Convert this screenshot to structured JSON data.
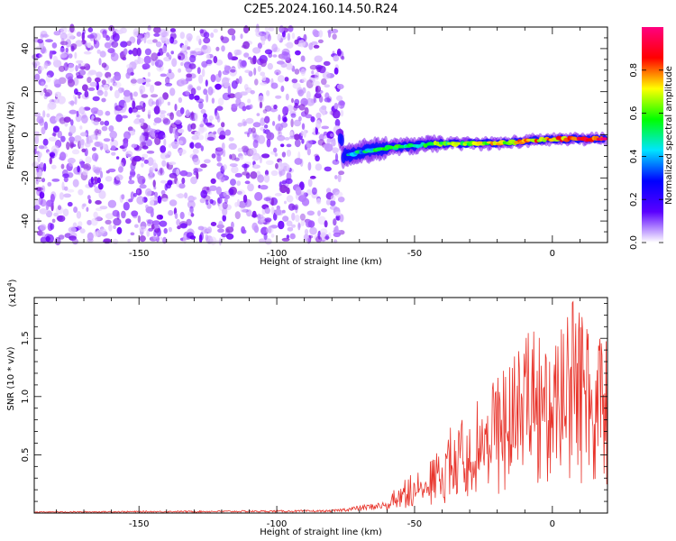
{
  "figure": {
    "title": "C2E5.2024.160.14.50.R24"
  },
  "chart_data": [
    {
      "type": "heatmap",
      "xlabel": "Height of straight line (km)",
      "ylabel": "Frequency (Hz)",
      "xlim": [
        -188,
        20
      ],
      "ylim": [
        -50,
        50
      ],
      "x_ticks": [
        -150,
        -100,
        -50,
        0
      ],
      "x_tick_labels": [
        "-150",
        "-100",
        "-50",
        "0"
      ],
      "y_ticks": [
        -40,
        -20,
        0,
        20,
        40
      ],
      "y_tick_labels": [
        "-40",
        "-20",
        "0",
        "20",
        "40"
      ],
      "noise_region_x": [
        -188,
        -78
      ],
      "signal_track": [
        {
          "x": -76,
          "y": -10
        },
        {
          "x": -70,
          "y": -8
        },
        {
          "x": -60,
          "y": -6
        },
        {
          "x": -50,
          "y": -5
        },
        {
          "x": -40,
          "y": -4
        },
        {
          "x": -30,
          "y": -4
        },
        {
          "x": -20,
          "y": -4
        },
        {
          "x": -10,
          "y": -3
        },
        {
          "x": 0,
          "y": -2
        },
        {
          "x": 10,
          "y": -2
        },
        {
          "x": 20,
          "y": -2
        }
      ],
      "colorbar": {
        "label": "Normalized spectral amplitude",
        "range": [
          0,
          1
        ],
        "ticks": [
          0.0,
          0.2,
          0.4,
          0.6,
          0.8
        ],
        "tick_labels": [
          "0.0",
          "0.2",
          "0.4",
          "0.6",
          "0.8"
        ],
        "colormap": [
          "#ffffff",
          "#5a00ff",
          "#0000ff",
          "#00e5ff",
          "#00ff00",
          "#ffff00",
          "#ff0000",
          "#ff0080"
        ]
      },
      "grid": false
    },
    {
      "type": "line",
      "xlabel": "Height of straight line (km)",
      "ylabel": "SNR (10 * v/v)",
      "multiplier_label": "(x10",
      "multiplier_exp": "4",
      "multiplier_close": ")",
      "xlim": [
        -188,
        20
      ],
      "ylim": [
        0,
        1.85
      ],
      "x_ticks": [
        -150,
        -100,
        -50,
        0
      ],
      "x_tick_labels": [
        "-150",
        "-100",
        "-50",
        "0"
      ],
      "y_ticks": [
        0.5,
        1.0,
        1.5
      ],
      "y_tick_labels": [
        "0.5",
        "1.0",
        "1.5"
      ],
      "color": "#e8332a",
      "envelope": [
        {
          "x": -188,
          "y": 0.01
        },
        {
          "x": -80,
          "y": 0.02
        },
        {
          "x": -70,
          "y": 0.05
        },
        {
          "x": -60,
          "y": 0.08
        },
        {
          "x": -55,
          "y": 0.25
        },
        {
          "x": -50,
          "y": 0.3
        },
        {
          "x": -45,
          "y": 0.35
        },
        {
          "x": -40,
          "y": 0.5
        },
        {
          "x": -35,
          "y": 0.7
        },
        {
          "x": -30,
          "y": 0.75
        },
        {
          "x": -25,
          "y": 0.85
        },
        {
          "x": -20,
          "y": 1.0
        },
        {
          "x": -15,
          "y": 1.15
        },
        {
          "x": -10,
          "y": 1.3
        },
        {
          "x": -5,
          "y": 1.35
        },
        {
          "x": 0,
          "y": 1.45
        },
        {
          "x": 5,
          "y": 1.55
        },
        {
          "x": 10,
          "y": 1.6
        },
        {
          "x": 15,
          "y": 1.65
        },
        {
          "x": 20,
          "y": 1.55
        }
      ],
      "grid": false
    }
  ]
}
